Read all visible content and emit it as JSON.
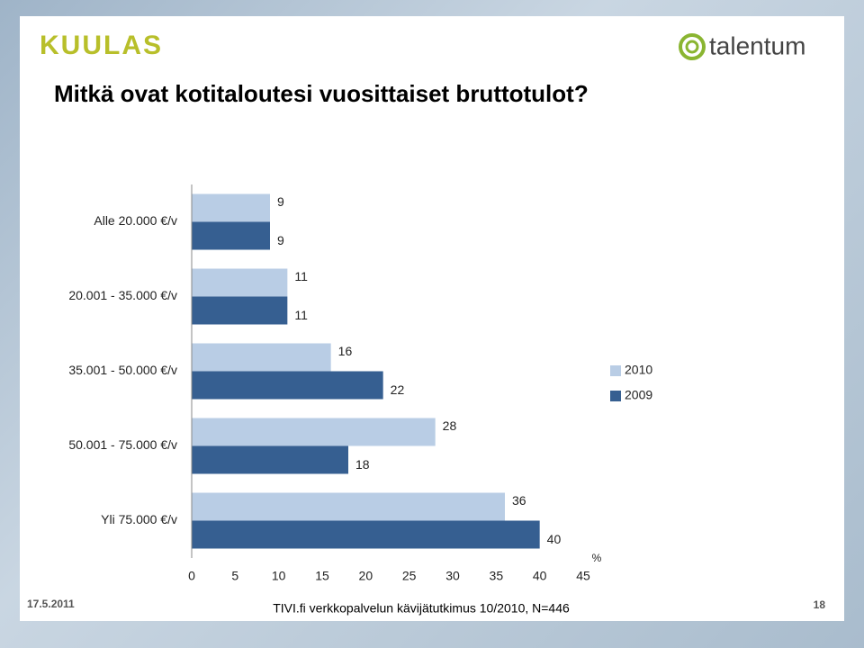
{
  "slide": {
    "logo_left": "KUULAS",
    "logo_right": "talentum",
    "date": "17.5.2011",
    "source": "TIVI.fi verkkopalvelun kävijätutkimus 10/2010, N=446",
    "page": "18"
  },
  "chart_data": {
    "type": "bar",
    "orientation": "horizontal",
    "title": "Mitkä ovat kotitaloutesi vuosittaiset bruttotulot?",
    "categories": [
      "Alle 20.000 €/v",
      "20.001 - 35.000 €/v",
      "35.001 - 50.000 €/v",
      "50.001 - 75.000 €/v",
      "Yli 75.000 €/v"
    ],
    "series": [
      {
        "name": "2010",
        "color": "#b9cde5",
        "values": [
          9,
          11,
          16,
          28,
          36
        ]
      },
      {
        "name": "2009",
        "color": "#365f91",
        "values": [
          9,
          11,
          22,
          18,
          40
        ]
      }
    ],
    "xlim": [
      0,
      45
    ],
    "xticks": [
      0,
      5,
      10,
      15,
      20,
      25,
      30,
      35,
      40,
      45
    ],
    "x_unit": "%",
    "grid": false,
    "legend": "right"
  }
}
